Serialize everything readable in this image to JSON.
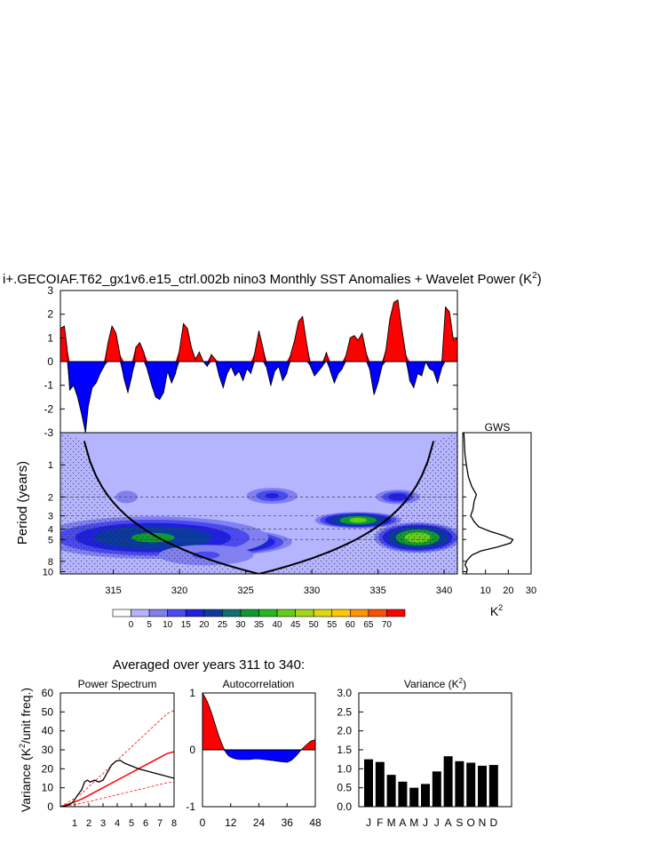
{
  "chart_data": [
    {
      "id": "timeseries",
      "type": "area",
      "title": "i+.GECOIAF.T62_gx1v6.e15_ctrl.002b nino3 Monthly SST Anomalies + Wavelet Power (K",
      "title_sup": "2",
      "title_tail": ")",
      "ylim": [
        -3,
        3
      ],
      "xlim": [
        311,
        341
      ],
      "yticks": [
        "3",
        "2",
        "1",
        "0",
        "-1",
        "-2",
        "-3"
      ],
      "pos_color": "#ff0000",
      "neg_color": "#0000ff",
      "series_x": [
        311.0,
        311.3,
        311.5,
        311.7,
        312.0,
        312.3,
        312.6,
        312.9,
        313.1,
        313.4,
        313.7,
        314.0,
        314.3,
        314.6,
        314.9,
        315.2,
        315.5,
        315.8,
        316.1,
        316.4,
        316.7,
        317.0,
        317.3,
        317.6,
        317.9,
        318.2,
        318.5,
        318.8,
        319.1,
        319.4,
        319.7,
        320.0,
        320.3,
        320.6,
        320.9,
        321.2,
        321.5,
        321.8,
        322.1,
        322.4,
        322.7,
        323.0,
        323.3,
        323.6,
        323.9,
        324.2,
        324.5,
        324.8,
        325.1,
        325.4,
        325.7,
        326.0,
        326.3,
        326.6,
        326.9,
        327.2,
        327.5,
        327.8,
        328.1,
        328.4,
        328.7,
        329.0,
        329.3,
        329.6,
        329.9,
        330.2,
        330.5,
        330.8,
        331.1,
        331.4,
        331.7,
        332.0,
        332.3,
        332.6,
        332.9,
        333.2,
        333.5,
        333.8,
        334.1,
        334.4,
        334.7,
        335.0,
        335.3,
        335.6,
        335.9,
        336.2,
        336.5,
        336.8,
        337.1,
        337.4,
        337.7,
        338.0,
        338.3,
        338.6,
        338.9,
        339.2,
        339.5,
        339.8,
        340.1,
        340.4,
        340.7,
        341.0
      ],
      "series_y": [
        1.4,
        1.5,
        0.6,
        -1.2,
        -1.0,
        -1.5,
        -2.2,
        -3.0,
        -1.9,
        -1.1,
        -0.9,
        -0.5,
        -0.2,
        0.8,
        1.5,
        1.2,
        0.3,
        -0.7,
        -1.3,
        -0.6,
        0.6,
        0.8,
        0.4,
        -0.4,
        -1.0,
        -1.5,
        -1.6,
        -1.3,
        -0.4,
        -0.9,
        -0.5,
        0.5,
        1.6,
        1.4,
        0.6,
        0.1,
        0.4,
        0.0,
        -0.2,
        0.3,
        0.1,
        -0.6,
        -1.1,
        -0.5,
        -0.2,
        -0.6,
        -0.4,
        -0.8,
        -0.3,
        -0.5,
        0.4,
        1.3,
        0.6,
        -0.3,
        -1.0,
        -0.4,
        -0.2,
        -0.8,
        -0.5,
        0.3,
        0.9,
        1.7,
        1.9,
        0.8,
        -0.2,
        -0.6,
        -0.4,
        -0.2,
        0.4,
        -0.4,
        -0.9,
        -0.5,
        -0.3,
        0.3,
        1.0,
        1.1,
        0.9,
        1.2,
        0.4,
        -0.4,
        -1.4,
        -0.9,
        -0.2,
        0.5,
        1.8,
        2.5,
        2.6,
        1.4,
        0.3,
        -0.8,
        -1.1,
        -0.5,
        -0.6,
        0.0,
        -0.3,
        -0.4,
        -0.9,
        -0.3,
        2.3,
        2.1,
        0.9,
        1.0
      ]
    },
    {
      "id": "wavelet",
      "type": "heatmap",
      "xlim": [
        311,
        341
      ],
      "ylabel": "Period (years)",
      "xticks": [
        "315",
        "320",
        "325",
        "330",
        "335",
        "340"
      ],
      "yticks": [
        "1",
        "2",
        "3",
        "4",
        "5",
        "8",
        "10"
      ],
      "dashed_periods": [
        2,
        3,
        4,
        5
      ],
      "blobs": [
        {
          "x": 320,
          "p": 5.3,
          "rx": 9,
          "rp": 0.3,
          "value": 60
        },
        {
          "x": 318,
          "p": 4.8,
          "rx": 10,
          "rp": 0.45,
          "value": 30
        },
        {
          "x": 333.5,
          "p": 3.3,
          "rx": 3.5,
          "rp": 0.15,
          "value": 40
        },
        {
          "x": 338,
          "p": 4.8,
          "rx": 3.5,
          "rp": 0.3,
          "value": 45
        },
        {
          "x": 327,
          "p": 1.95,
          "rx": 2.5,
          "rp": 0.18,
          "value": 15
        },
        {
          "x": 336.5,
          "p": 2.0,
          "rx": 2.0,
          "rp": 0.15,
          "value": 18
        },
        {
          "x": 316,
          "p": 2.0,
          "rx": 1.5,
          "rp": 0.2,
          "value": 8
        },
        {
          "x": 322,
          "p": 7.0,
          "rx": 6,
          "rp": 0.3,
          "value": 10
        }
      ]
    },
    {
      "id": "gws",
      "type": "line",
      "title": "GWS",
      "xlabel": "K",
      "xlabel_sup": "2",
      "xticks": [
        "10",
        "20",
        "30"
      ],
      "xlim": [
        0,
        30
      ],
      "period": [
        0.5,
        0.8,
        1.0,
        1.3,
        1.6,
        1.9,
        2.2,
        2.6,
        3.0,
        3.4,
        3.8,
        4.2,
        4.6,
        5.0,
        5.4,
        5.9,
        6.4,
        7.0,
        7.8,
        8.6,
        9.5,
        10.5
      ],
      "power": [
        0.5,
        1.0,
        1.6,
        2.5,
        4.0,
        6.0,
        5.0,
        4.5,
        3.5,
        5.0,
        7.0,
        12.0,
        18.0,
        22.0,
        21.0,
        15.0,
        8.0,
        4.0,
        2.0,
        1.0,
        2.0,
        1.5
      ]
    },
    {
      "id": "colorbar",
      "type": "table",
      "labels": [
        "0",
        "5",
        "10",
        "15",
        "20",
        "25",
        "30",
        "35",
        "40",
        "45",
        "50",
        "55",
        "60",
        "65",
        "70"
      ],
      "colors": [
        "#ffffff",
        "#b4b4ff",
        "#8080f0",
        "#4a4af0",
        "#1f1fe0",
        "#0a3aa0",
        "#0f6f70",
        "#0e9a2e",
        "#26b820",
        "#66cc1a",
        "#a3d81a",
        "#dcd810",
        "#ffc800",
        "#ff9400",
        "#ff5000",
        "#ff0000"
      ]
    },
    {
      "id": "power_spectrum",
      "type": "line",
      "title": "Power Spectrum",
      "ylabel": "Variance (K",
      "ylabel_sup": "2",
      "ylabel_tail": "/unit freq.)",
      "ylim": [
        0,
        60
      ],
      "yticks": [
        "60",
        "50",
        "40",
        "30",
        "20",
        "10",
        "0"
      ],
      "xticks": [
        "1",
        "2",
        "3",
        "4",
        "5",
        "6",
        "7",
        "8"
      ],
      "freq": [
        0.0,
        0.3,
        0.6,
        0.9,
        1.2,
        1.5,
        1.7,
        1.9,
        2.1,
        2.4,
        2.7,
        3.0,
        3.3,
        3.6,
        3.9,
        4.2,
        4.5,
        5.0,
        5.5,
        6.0,
        6.5,
        7.0,
        7.5,
        8.0
      ],
      "spectrum": [
        0,
        0.3,
        1.0,
        2.5,
        6,
        9,
        13,
        14,
        13,
        14,
        13,
        14,
        18,
        22,
        24,
        24.5,
        23,
        21.5,
        20,
        19,
        18,
        17,
        16,
        15
      ],
      "red_fit": [
        0,
        1.2,
        2.5,
        4,
        6,
        8,
        10,
        12,
        14,
        16,
        18,
        20,
        22,
        24,
        26,
        28,
        29
      ],
      "red_freq": [
        0,
        0.5,
        1,
        1.5,
        2,
        2.5,
        3,
        3.5,
        4,
        4.5,
        5,
        5.5,
        6,
        6.5,
        7,
        7.5,
        8
      ],
      "upper_factor": 1.75,
      "lower_factor": 0.45
    },
    {
      "id": "autocorrelation",
      "type": "area",
      "title": "Autocorrelation",
      "ylim": [
        -1,
        1
      ],
      "yticks": [
        "1",
        "0",
        "-1"
      ],
      "xticks": [
        "0",
        "12",
        "24",
        "36",
        "48"
      ],
      "lag": [
        0,
        1,
        2,
        3,
        4,
        5,
        6,
        7,
        8,
        9,
        10,
        11,
        12,
        14,
        16,
        18,
        20,
        22,
        24,
        26,
        28,
        30,
        32,
        34,
        36,
        38,
        40,
        42,
        44,
        46,
        48
      ],
      "acf": [
        1.0,
        0.93,
        0.85,
        0.75,
        0.63,
        0.5,
        0.37,
        0.24,
        0.13,
        0.03,
        -0.05,
        -0.1,
        -0.13,
        -0.16,
        -0.17,
        -0.17,
        -0.17,
        -0.16,
        -0.16,
        -0.17,
        -0.18,
        -0.19,
        -0.2,
        -0.21,
        -0.22,
        -0.18,
        -0.1,
        0.0,
        0.08,
        0.15,
        0.18
      ]
    },
    {
      "id": "variance",
      "type": "bar",
      "title": "Variance (K",
      "title_sup": "2",
      "title_tail": ")",
      "categories": [
        "J",
        "F",
        "M",
        "A",
        "M",
        "J",
        "J",
        "A",
        "S",
        "O",
        "N",
        "D"
      ],
      "values": [
        1.25,
        1.18,
        0.84,
        0.66,
        0.5,
        0.6,
        0.93,
        1.33,
        1.2,
        1.16,
        1.08,
        1.1
      ],
      "ylim": [
        0,
        3
      ],
      "yticks": [
        "3.0",
        "2.5",
        "2.0",
        "1.5",
        "1.0",
        "0.5",
        "0.0"
      ]
    }
  ],
  "averaged_label": "Averaged over years 311 to 340:"
}
